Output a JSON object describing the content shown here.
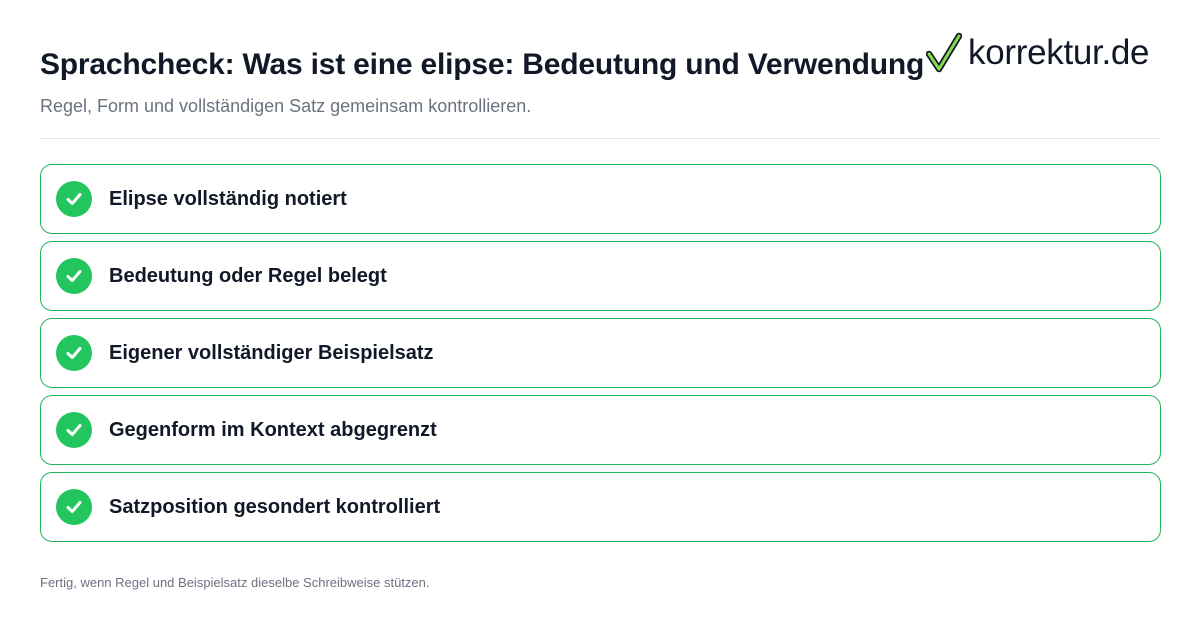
{
  "header": {
    "title": "Sprachcheck: Was ist eine elipse: Bedeutung und Verwendung",
    "subtitle": "Regel, Form und vollständigen Satz gemeinsam kontrollieren."
  },
  "logo": {
    "icon": "checkmark-icon",
    "text": "korrektur.de"
  },
  "checklist": {
    "items": [
      {
        "label": "Elipse vollständig notiert",
        "icon": "check-circle-icon",
        "status": "checked"
      },
      {
        "label": "Bedeutung oder Regel belegt",
        "icon": "check-circle-icon",
        "status": "checked"
      },
      {
        "label": "Eigener vollständiger Beispielsatz",
        "icon": "check-circle-icon",
        "status": "checked"
      },
      {
        "label": "Gegenform im Kontext abgegrenzt",
        "icon": "check-circle-icon",
        "status": "checked"
      },
      {
        "label": "Satzposition gesondert kontrolliert",
        "icon": "check-circle-icon",
        "status": "checked"
      }
    ]
  },
  "footer": {
    "note": "Fertig, wenn Regel und Beispielsatz dieselbe Schreibweise stützen."
  },
  "colors": {
    "accent": "#22c55e",
    "border": "#22b35e",
    "text": "#111827",
    "muted": "#6b7280"
  }
}
